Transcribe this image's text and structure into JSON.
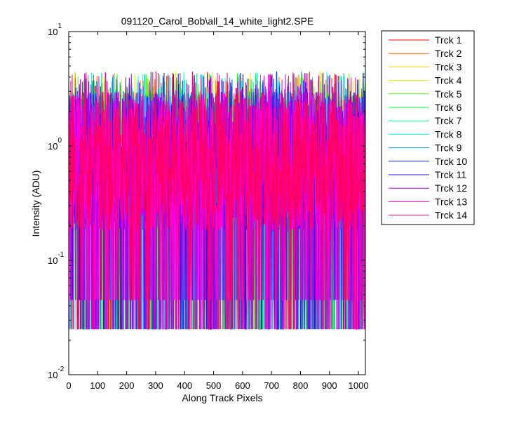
{
  "chart_data": {
    "type": "line",
    "title": "091120_Carol_Bob\\all_14_white_light2.SPE",
    "xlabel": "Along Track Pixels",
    "ylabel": "Intensity (ADU)",
    "xlim": [
      0,
      1024
    ],
    "ylim": [
      0.01,
      10
    ],
    "yscale": "log",
    "grid": false,
    "legend_position": "outside-right-top",
    "x_ticks": [
      0,
      100,
      200,
      300,
      400,
      500,
      600,
      700,
      800,
      900,
      1000
    ],
    "x_tick_labels": [
      "0",
      "100",
      "200",
      "300",
      "400",
      "500",
      "600",
      "700",
      "800",
      "900",
      "1000"
    ],
    "y_ticks": [
      {
        "value": 10,
        "base": "10",
        "exp": "1"
      },
      {
        "value": 1,
        "base": "10",
        "exp": "0"
      },
      {
        "value": 0.1,
        "base": "10",
        "exp": "-1"
      },
      {
        "value": 0.01,
        "base": "10",
        "exp": "-2"
      }
    ],
    "data_description": "14 noisy tracks of 1024 pixels each; values fluctuate mostly between about 0.025 and 4.5 ADU (typical 0.3–3 ADU)",
    "value_range": [
      0.025,
      4.5
    ],
    "typical_range": [
      0.3,
      3.0
    ],
    "num_points_per_series": 1024,
    "series": [
      {
        "name": "Trck 1",
        "color": "#ff0000"
      },
      {
        "name": "Trck 2",
        "color": "#ff6a00"
      },
      {
        "name": "Trck 3",
        "color": "#ffd400"
      },
      {
        "name": "Trck 4",
        "color": "#c8ff00"
      },
      {
        "name": "Trck 5",
        "color": "#55ff00"
      },
      {
        "name": "Trck 6",
        "color": "#00ff2a"
      },
      {
        "name": "Trck 7",
        "color": "#00ff95"
      },
      {
        "name": "Trck 8",
        "color": "#00ffff"
      },
      {
        "name": "Trck 9",
        "color": "#0095ff"
      },
      {
        "name": "Trck 10",
        "color": "#002aff"
      },
      {
        "name": "Trck 11",
        "color": "#3f00ff"
      },
      {
        "name": "Trck 12",
        "color": "#aa00ff"
      },
      {
        "name": "Trck 13",
        "color": "#ff00d4"
      },
      {
        "name": "Trck 14",
        "color": "#ff006a"
      }
    ]
  }
}
